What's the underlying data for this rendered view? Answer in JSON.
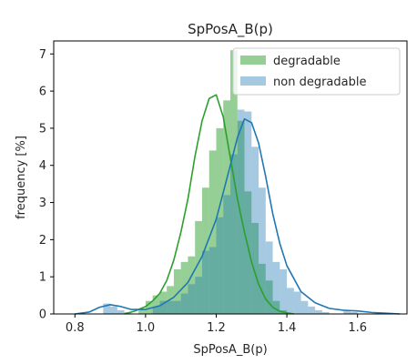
{
  "chart_data": {
    "type": "histogram",
    "title": "SpPosA_B(p)",
    "xlabel": "SpPosA_B(p)",
    "ylabel": "frequency [%]",
    "xlim": [
      0.74,
      1.74
    ],
    "ylim": [
      0,
      7.35
    ],
    "xticks": [
      0.8,
      1.0,
      1.2,
      1.4,
      1.6
    ],
    "xtick_labels": [
      "0.8",
      "1.0",
      "1.2",
      "1.4",
      "1.6"
    ],
    "yticks": [
      0,
      1,
      2,
      3,
      4,
      5,
      6,
      7
    ],
    "ytick_labels": [
      "0",
      "1",
      "2",
      "3",
      "4",
      "5",
      "6",
      "7"
    ],
    "legend_position": "top-right",
    "series": [
      {
        "name": "degradable",
        "color": "#2ca02c",
        "hist_alpha": 0.5,
        "bins": [
          {
            "x0": 0.98,
            "x1": 1.0,
            "y": 0.15
          },
          {
            "x0": 1.0,
            "x1": 1.02,
            "y": 0.35
          },
          {
            "x0": 1.02,
            "x1": 1.04,
            "y": 0.5
          },
          {
            "x0": 1.04,
            "x1": 1.06,
            "y": 0.6
          },
          {
            "x0": 1.06,
            "x1": 1.08,
            "y": 0.75
          },
          {
            "x0": 1.08,
            "x1": 1.1,
            "y": 1.2
          },
          {
            "x0": 1.1,
            "x1": 1.12,
            "y": 1.4
          },
          {
            "x0": 1.12,
            "x1": 1.14,
            "y": 1.55
          },
          {
            "x0": 1.14,
            "x1": 1.16,
            "y": 2.5
          },
          {
            "x0": 1.16,
            "x1": 1.18,
            "y": 3.4
          },
          {
            "x0": 1.18,
            "x1": 1.2,
            "y": 4.4
          },
          {
            "x0": 1.2,
            "x1": 1.22,
            "y": 5.0
          },
          {
            "x0": 1.22,
            "x1": 1.24,
            "y": 5.75
          },
          {
            "x0": 1.24,
            "x1": 1.26,
            "y": 7.1
          },
          {
            "x0": 1.26,
            "x1": 1.28,
            "y": 5.2
          },
          {
            "x0": 1.28,
            "x1": 1.3,
            "y": 3.3
          },
          {
            "x0": 1.3,
            "x1": 1.32,
            "y": 2.45
          },
          {
            "x0": 1.32,
            "x1": 1.34,
            "y": 1.35
          },
          {
            "x0": 1.34,
            "x1": 1.36,
            "y": 0.9
          },
          {
            "x0": 1.36,
            "x1": 1.38,
            "y": 0.35
          },
          {
            "x0": 1.38,
            "x1": 1.4,
            "y": 0.1
          }
        ],
        "kde_x": [
          0.94,
          0.97,
          1.0,
          1.02,
          1.04,
          1.06,
          1.08,
          1.1,
          1.12,
          1.14,
          1.16,
          1.18,
          1.2,
          1.22,
          1.24,
          1.26,
          1.28,
          1.3,
          1.32,
          1.34,
          1.36,
          1.38,
          1.4,
          1.42
        ],
        "kde_y": [
          0.0,
          0.08,
          0.2,
          0.35,
          0.55,
          0.9,
          1.45,
          2.2,
          3.1,
          4.25,
          5.2,
          5.8,
          5.9,
          5.3,
          4.2,
          3.1,
          2.2,
          1.4,
          0.8,
          0.4,
          0.18,
          0.07,
          0.03,
          0.0
        ]
      },
      {
        "name": "non degradable",
        "color": "#1f77b4",
        "hist_alpha": 0.4,
        "bins": [
          {
            "x0": 0.88,
            "x1": 0.9,
            "y": 0.28
          },
          {
            "x0": 0.9,
            "x1": 0.92,
            "y": 0.2
          },
          {
            "x0": 0.92,
            "x1": 0.94,
            "y": 0.1
          },
          {
            "x0": 0.94,
            "x1": 0.96,
            "y": 0.05
          },
          {
            "x0": 1.02,
            "x1": 1.04,
            "y": 0.2
          },
          {
            "x0": 1.04,
            "x1": 1.06,
            "y": 0.35
          },
          {
            "x0": 1.06,
            "x1": 1.08,
            "y": 0.35
          },
          {
            "x0": 1.08,
            "x1": 1.1,
            "y": 0.35
          },
          {
            "x0": 1.1,
            "x1": 1.12,
            "y": 0.55
          },
          {
            "x0": 1.12,
            "x1": 1.14,
            "y": 0.8
          },
          {
            "x0": 1.14,
            "x1": 1.16,
            "y": 1.0
          },
          {
            "x0": 1.16,
            "x1": 1.18,
            "y": 1.7
          },
          {
            "x0": 1.18,
            "x1": 1.2,
            "y": 1.8
          },
          {
            "x0": 1.2,
            "x1": 1.22,
            "y": 2.6
          },
          {
            "x0": 1.22,
            "x1": 1.24,
            "y": 3.2
          },
          {
            "x0": 1.24,
            "x1": 1.26,
            "y": 4.3
          },
          {
            "x0": 1.26,
            "x1": 1.28,
            "y": 5.5
          },
          {
            "x0": 1.28,
            "x1": 1.3,
            "y": 5.45
          },
          {
            "x0": 1.3,
            "x1": 1.32,
            "y": 4.5
          },
          {
            "x0": 1.32,
            "x1": 1.34,
            "y": 3.4
          },
          {
            "x0": 1.34,
            "x1": 1.36,
            "y": 1.95
          },
          {
            "x0": 1.36,
            "x1": 1.38,
            "y": 1.4
          },
          {
            "x0": 1.38,
            "x1": 1.4,
            "y": 1.2
          },
          {
            "x0": 1.4,
            "x1": 1.42,
            "y": 0.7
          },
          {
            "x0": 1.42,
            "x1": 1.44,
            "y": 0.6
          },
          {
            "x0": 1.44,
            "x1": 1.46,
            "y": 0.35
          },
          {
            "x0": 1.46,
            "x1": 1.48,
            "y": 0.2
          },
          {
            "x0": 1.48,
            "x1": 1.5,
            "y": 0.1
          },
          {
            "x0": 1.5,
            "x1": 1.52,
            "y": 0.05
          },
          {
            "x0": 1.56,
            "x1": 1.58,
            "y": 0.07
          },
          {
            "x0": 1.58,
            "x1": 1.6,
            "y": 0.05
          }
        ],
        "kde_x": [
          0.8,
          0.84,
          0.87,
          0.9,
          0.93,
          0.96,
          1.0,
          1.04,
          1.08,
          1.12,
          1.16,
          1.2,
          1.24,
          1.26,
          1.28,
          1.3,
          1.32,
          1.34,
          1.36,
          1.38,
          1.4,
          1.44,
          1.48,
          1.52,
          1.56,
          1.6,
          1.64,
          1.68,
          1.72
        ],
        "kde_y": [
          0.0,
          0.05,
          0.18,
          0.25,
          0.2,
          0.12,
          0.12,
          0.22,
          0.45,
          0.85,
          1.55,
          2.55,
          4.0,
          4.75,
          5.25,
          5.15,
          4.6,
          3.7,
          2.7,
          1.9,
          1.3,
          0.6,
          0.3,
          0.15,
          0.1,
          0.08,
          0.04,
          0.02,
          0.0
        ]
      }
    ]
  }
}
